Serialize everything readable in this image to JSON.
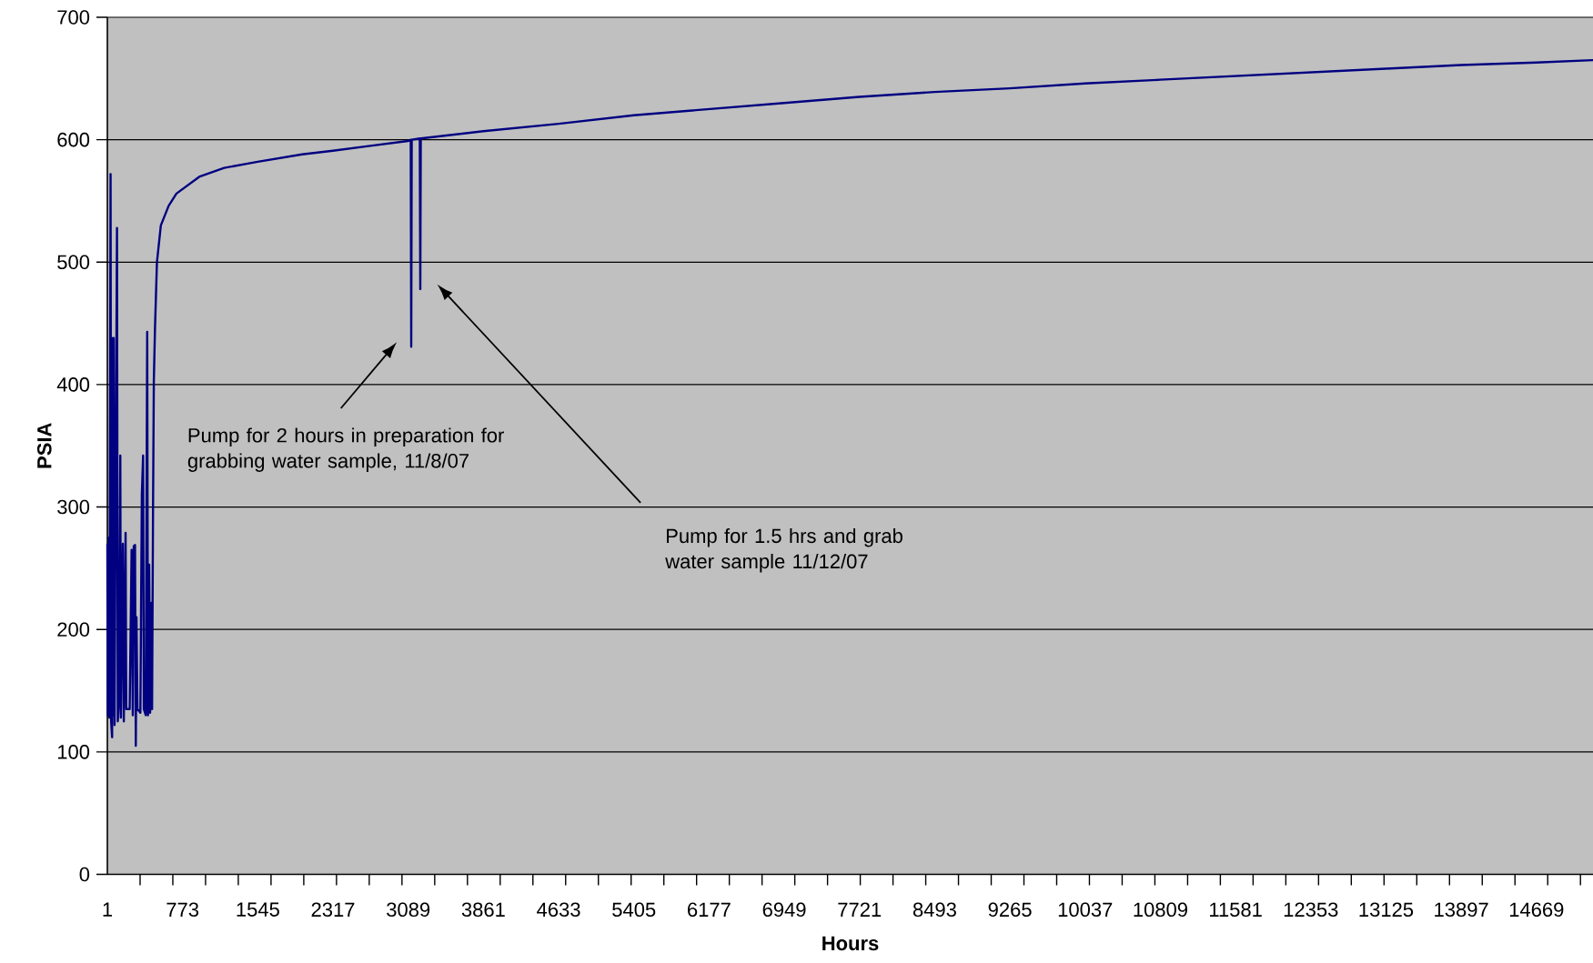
{
  "chart_data": {
    "type": "line",
    "xlabel": "Hours",
    "ylabel": "PSIA",
    "color": "#000080",
    "grid": "y",
    "marker": "none",
    "line_style": "solid",
    "xlim": [
      1,
      15250
    ],
    "ylim": [
      0,
      700
    ],
    "yticks": [
      0,
      100,
      200,
      300,
      400,
      500,
      600,
      700
    ],
    "xticks": [
      1,
      773,
      1545,
      2317,
      3089,
      3861,
      4633,
      5405,
      6177,
      6949,
      7721,
      8493,
      9265,
      10037,
      10809,
      11581,
      12353,
      13125,
      13897,
      14669,
      {
        "value": 337,
        "label": null
      },
      {
        "value": 673,
        "label": null
      },
      {
        "value": 1009,
        "label": null
      },
      {
        "value": 1345,
        "label": null
      },
      {
        "value": 1681,
        "label": null
      },
      {
        "value": 2017,
        "label": null
      },
      {
        "value": 2353,
        "label": null
      },
      {
        "value": 2689,
        "label": null
      },
      {
        "value": 3025,
        "label": null
      },
      {
        "value": 3361,
        "label": null
      },
      {
        "value": 3697,
        "label": null
      },
      {
        "value": 4033,
        "label": null
      },
      {
        "value": 4369,
        "label": null
      },
      {
        "value": 4705,
        "label": null
      },
      {
        "value": 5041,
        "label": null
      },
      {
        "value": 5377,
        "label": null
      },
      {
        "value": 5713,
        "label": null
      },
      {
        "value": 6049,
        "label": null
      },
      {
        "value": 6385,
        "label": null
      },
      {
        "value": 6721,
        "label": null
      },
      {
        "value": 7057,
        "label": null
      },
      {
        "value": 7393,
        "label": null
      },
      {
        "value": 7729,
        "label": null
      },
      {
        "value": 8065,
        "label": null
      },
      {
        "value": 8401,
        "label": null
      },
      {
        "value": 8737,
        "label": null
      },
      {
        "value": 9073,
        "label": null
      },
      {
        "value": 9409,
        "label": null
      },
      {
        "value": 9745,
        "label": null
      },
      {
        "value": 10081,
        "label": null
      },
      {
        "value": 10417,
        "label": null
      },
      {
        "value": 10753,
        "label": null
      },
      {
        "value": 11089,
        "label": null
      },
      {
        "value": 11425,
        "label": null
      },
      {
        "value": 11761,
        "label": null
      },
      {
        "value": 12097,
        "label": null
      },
      {
        "value": 12433,
        "label": null
      },
      {
        "value": 12769,
        "label": null
      },
      {
        "value": 13105,
        "label": null
      },
      {
        "value": 13441,
        "label": null
      },
      {
        "value": 13777,
        "label": null
      },
      {
        "value": 14113,
        "label": null
      },
      {
        "value": 14449,
        "label": null
      },
      {
        "value": 14785,
        "label": null
      },
      {
        "value": 15121,
        "label": null
      }
    ],
    "x": [
      1,
      5,
      15,
      22,
      34,
      40,
      50,
      58,
      63,
      67,
      75,
      100,
      108,
      120,
      134,
      140,
      160,
      170,
      188,
      195,
      230,
      250,
      262,
      272,
      285,
      293,
      300,
      310,
      340,
      355,
      368,
      375,
      395,
      410,
      418,
      430,
      440,
      455,
      460,
      470,
      478,
      490,
      510,
      550,
      630,
      710,
      950,
      1200,
      1545,
      2000,
      2317,
      2700,
      3089,
      3115,
      3120,
      3125,
      3208,
      3213,
      3218,
      3861,
      4633,
      5405,
      6177,
      6949,
      7721,
      8493,
      9265,
      10037,
      10809,
      11581,
      12353,
      13125,
      13897,
      14669,
      15250
    ],
    "values": [
      270,
      130,
      275,
      128,
      572,
      125,
      112,
      438,
      130,
      438,
      122,
      528,
      125,
      140,
      342,
      128,
      270,
      125,
      279,
      135,
      135,
      265,
      130,
      268,
      269,
      105,
      210,
      135,
      132,
      310,
      342,
      135,
      130,
      443,
      130,
      253,
      132,
      222,
      135,
      300,
      403,
      446,
      500,
      530,
      546,
      556,
      570,
      577,
      582,
      588,
      591,
      595,
      599,
      600,
      431,
      600,
      601,
      478,
      601,
      607,
      613,
      620,
      625,
      630,
      635,
      639,
      642,
      646,
      649,
      652,
      655,
      658,
      661,
      663,
      665
    ],
    "annotations": [
      "Pump for 2 hours in preparation for grabbing water sample, 11/8/07",
      "Pump for 1.5 hrs and grab water sample 11/12/07"
    ]
  }
}
